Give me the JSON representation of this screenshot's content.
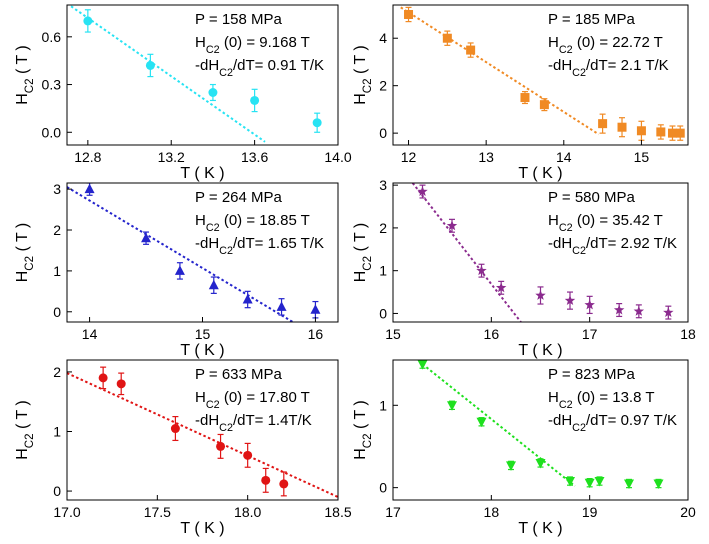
{
  "chart_data": [
    {
      "type": "scatter",
      "xlabel": "T ( K )",
      "ylabel": "H_C2 ( T )",
      "xlim": [
        12.7,
        14.0
      ],
      "ylim": [
        -0.08,
        0.8
      ],
      "xticks": [
        "12.8",
        "13.2",
        "13.6",
        "14.0"
      ],
      "yticks": [
        "0.0",
        "0.3",
        "0.6"
      ],
      "color": "#27E3F3",
      "marker": "circle",
      "annotations": [
        "P = 158 MPa",
        "H_C2 (0)  = 9.168 T",
        "-dH_C2/dT= 0.91 T/K"
      ],
      "series": [
        {
          "x": [
            12.8,
            13.1,
            13.4,
            13.6,
            13.9
          ],
          "y": [
            0.7,
            0.42,
            0.25,
            0.2,
            0.06
          ],
          "err": [
            0.07,
            0.07,
            0.05,
            0.07,
            0.06
          ]
        }
      ],
      "fit_line": {
        "x": [
          12.7,
          13.65
        ],
        "y": [
          0.81,
          -0.06
        ]
      }
    },
    {
      "type": "scatter",
      "xlabel": "T ( K )",
      "ylabel": "H_C2 ( T )",
      "xlim": [
        11.8,
        15.6
      ],
      "ylim": [
        -0.5,
        5.4
      ],
      "xticks": [
        "12",
        "13",
        "14",
        "15"
      ],
      "yticks": [
        "0",
        "2",
        "4"
      ],
      "color": "#F08A24",
      "marker": "square",
      "annotations": [
        "P = 185 MPa",
        "H_C2 (0)  = 22.72 T",
        "-dH_C2/dT= 2.1 T/K"
      ],
      "series": [
        {
          "x": [
            12.0,
            12.5,
            12.8,
            13.5,
            13.75,
            14.5,
            14.75,
            15.0,
            15.25,
            15.4,
            15.5
          ],
          "y": [
            5.0,
            4.0,
            3.5,
            1.5,
            1.2,
            0.4,
            0.25,
            0.1,
            0.05,
            0.0,
            0.0
          ],
          "err": [
            0.3,
            0.3,
            0.3,
            0.25,
            0.25,
            0.4,
            0.4,
            0.4,
            0.3,
            0.3,
            0.3
          ]
        }
      ],
      "fit_line": {
        "x": [
          11.9,
          14.45
        ],
        "y": [
          5.3,
          -0.05
        ]
      }
    },
    {
      "type": "scatter",
      "xlabel": "T ( K )",
      "ylabel": "H_C2 ( T )",
      "xlim": [
        13.8,
        16.2
      ],
      "ylim": [
        -0.25,
        3.15
      ],
      "xticks": [
        "14",
        "15",
        "16"
      ],
      "yticks": [
        "0",
        "1",
        "2",
        "3"
      ],
      "color": "#2424CC",
      "marker": "triangle-up",
      "annotations": [
        "P = 264 MPa",
        "H_C2 (0)  = 18.85 T",
        "-dH_C2/dT= 1.65 T/K"
      ],
      "series": [
        {
          "x": [
            14.0,
            14.5,
            14.8,
            15.1,
            15.4,
            15.7,
            16.0
          ],
          "y": [
            3.0,
            1.8,
            1.0,
            0.65,
            0.3,
            0.12,
            0.05
          ],
          "err": [
            0.15,
            0.15,
            0.2,
            0.2,
            0.2,
            0.2,
            0.2
          ]
        }
      ],
      "fit_line": {
        "x": [
          13.8,
          15.8
        ],
        "y": [
          3.05,
          -0.25
        ]
      }
    },
    {
      "type": "scatter",
      "xlabel": "T ( K )",
      "ylabel": "H_C2 ( T )",
      "xlim": [
        15.0,
        18.0
      ],
      "ylim": [
        -0.2,
        3.05
      ],
      "xticks": [
        "15",
        "16",
        "17",
        "18"
      ],
      "yticks": [
        "0",
        "1",
        "2",
        "3"
      ],
      "color": "#8B2B8E",
      "marker": "star",
      "annotations": [
        "P = 580 MPa",
        "H_C2 (0)  = 35.42 T",
        "-dH_C2/dT= 2.92 T/K"
      ],
      "series": [
        {
          "x": [
            15.3,
            15.6,
            15.9,
            16.1,
            16.5,
            16.8,
            17.0,
            17.3,
            17.5,
            17.8
          ],
          "y": [
            2.85,
            2.05,
            1.0,
            0.6,
            0.42,
            0.3,
            0.2,
            0.08,
            0.05,
            0.02
          ],
          "err": [
            0.15,
            0.15,
            0.15,
            0.15,
            0.2,
            0.2,
            0.2,
            0.15,
            0.15,
            0.15
          ]
        }
      ],
      "fit_line": {
        "x": [
          15.2,
          16.3
        ],
        "y": [
          3.05,
          -0.2
        ]
      }
    },
    {
      "type": "scatter",
      "xlabel": "T ( K )",
      "ylabel": "H_C2 ( T )",
      "xlim": [
        17.0,
        18.5
      ],
      "ylim": [
        -0.15,
        2.2
      ],
      "xticks": [
        "17.0",
        "17.5",
        "18.0",
        "18.5"
      ],
      "yticks": [
        "0",
        "1",
        "2"
      ],
      "color": "#E01414",
      "marker": "circle",
      "annotations": [
        "P = 633 MPa",
        "H_C2 (0)  = 17.80 T",
        "-dH_C2/dT= 1.4T/K"
      ],
      "series": [
        {
          "x": [
            17.2,
            17.3,
            17.6,
            17.85,
            18.0,
            18.1,
            18.2
          ],
          "y": [
            1.9,
            1.8,
            1.05,
            0.75,
            0.6,
            0.18,
            0.12
          ],
          "err": [
            0.18,
            0.18,
            0.2,
            0.2,
            0.2,
            0.2,
            0.2
          ]
        }
      ],
      "fit_line": {
        "x": [
          17.0,
          18.5
        ],
        "y": [
          1.98,
          -0.1
        ]
      }
    },
    {
      "type": "scatter",
      "xlabel": "T ( K )",
      "ylabel": "H_C2 ( T )",
      "xlim": [
        17.0,
        20.0
      ],
      "ylim": [
        -0.15,
        1.55
      ],
      "xticks": [
        "17",
        "18",
        "19",
        "20"
      ],
      "yticks": [
        "0",
        "1"
      ],
      "color": "#1EE01E",
      "marker": "triangle-down",
      "annotations": [
        "P = 823 MPa",
        "H_C2 (0)  = 13.8 T",
        "-dH_C2/dT= 0.97 T/K"
      ],
      "series": [
        {
          "x": [
            17.3,
            17.6,
            17.9,
            18.2,
            18.5,
            18.8,
            19.0,
            19.1,
            19.4,
            19.7
          ],
          "y": [
            1.5,
            1.0,
            0.8,
            0.27,
            0.3,
            0.08,
            0.06,
            0.08,
            0.05,
            0.05
          ],
          "err": [
            0.05,
            0.05,
            0.05,
            0.05,
            0.05,
            0.05,
            0.05,
            0.05,
            0.05,
            0.05
          ]
        }
      ],
      "fit_line": {
        "x": [
          17.3,
          18.85
        ],
        "y": [
          1.5,
          0.02
        ]
      }
    }
  ]
}
